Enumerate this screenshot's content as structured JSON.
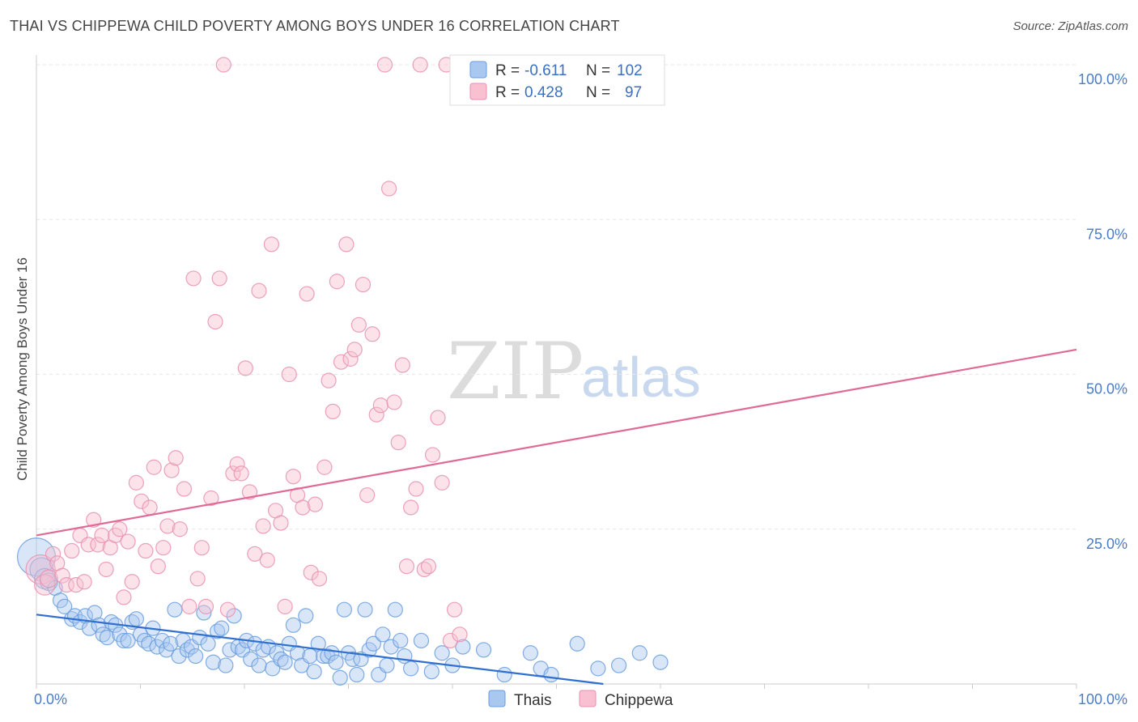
{
  "header": {
    "title": "THAI VS CHIPPEWA CHILD POVERTY AMONG BOYS UNDER 16 CORRELATION CHART",
    "source": "Source: ZipAtlas.com"
  },
  "watermark": {
    "zip": "ZIP",
    "atlas": "atlas"
  },
  "legend": {
    "r_label": "R =",
    "n_label": "N =",
    "rows": [
      {
        "r": "-0.611",
        "n": "102",
        "color": "#a8c8f0",
        "stroke": "#6a9ede"
      },
      {
        "r": "0.428",
        "n": "97",
        "color": "#f8c0d0",
        "stroke": "#e890b0"
      }
    ]
  },
  "bottom_legend": [
    {
      "label": "Thais",
      "color": "#a8c8f0",
      "stroke": "#6a9ede"
    },
    {
      "label": "Chippewa",
      "color": "#f8c0d0",
      "stroke": "#e890b0"
    }
  ],
  "chart_data": {
    "type": "scatter",
    "title": "THAI VS CHIPPEWA CHILD POVERTY AMONG BOYS UNDER 16 CORRELATION CHART",
    "xlabel": "",
    "ylabel": "Child Poverty Among Boys Under 16",
    "xlim": [
      0,
      100
    ],
    "ylim": [
      0,
      100
    ],
    "x_tick_labels": [
      "0.0%",
      "100.0%"
    ],
    "y_tick_labels": [
      "25.0%",
      "50.0%",
      "75.0%",
      "100.0%"
    ],
    "y_ticks": [
      25,
      50,
      75,
      100
    ],
    "grid": true,
    "legend_position": "top-center",
    "series": [
      {
        "name": "Thais",
        "color": "#6a9ede",
        "fill": "#a8c8f0",
        "trend": {
          "x": [
            0,
            54.5
          ],
          "y": [
            11.2,
            0
          ]
        },
        "points": [
          [
            0,
            20.5,
            2.6
          ],
          [
            0.5,
            18.5,
            1.6
          ],
          [
            0.8,
            17.0,
            1.4
          ],
          [
            1.2,
            16.5,
            1.2
          ],
          [
            1.8,
            15.5,
            1.0
          ],
          [
            2.3,
            13.5,
            1
          ],
          [
            2.7,
            12.5,
            1
          ],
          [
            3.4,
            10.5,
            1
          ],
          [
            3.7,
            11.0,
            1
          ],
          [
            4.2,
            10.0,
            1
          ],
          [
            4.7,
            11.0,
            1
          ],
          [
            5.1,
            9.0,
            1
          ],
          [
            5.6,
            11.5,
            1
          ],
          [
            6.0,
            9.5,
            1
          ],
          [
            6.4,
            8.0,
            1
          ],
          [
            6.8,
            7.5,
            1
          ],
          [
            7.2,
            10.0,
            1
          ],
          [
            7.6,
            9.5,
            1
          ],
          [
            8.0,
            8.0,
            1
          ],
          [
            8.4,
            7.0,
            1
          ],
          [
            8.8,
            7.0,
            1
          ],
          [
            9.2,
            10.0,
            1
          ],
          [
            9.6,
            10.5,
            1
          ],
          [
            10.0,
            8.0,
            1
          ],
          [
            10.4,
            7.0,
            1
          ],
          [
            10.8,
            6.5,
            1
          ],
          [
            11.2,
            9.0,
            1
          ],
          [
            11.6,
            6.0,
            1
          ],
          [
            12.1,
            7.0,
            1
          ],
          [
            12.5,
            5.5,
            1
          ],
          [
            12.9,
            6.5,
            1
          ],
          [
            13.3,
            12.0,
            1
          ],
          [
            13.7,
            4.5,
            1
          ],
          [
            14.1,
            7.0,
            1
          ],
          [
            14.5,
            5.5,
            1
          ],
          [
            14.9,
            6.0,
            1
          ],
          [
            15.3,
            4.5,
            1
          ],
          [
            15.7,
            7.5,
            1
          ],
          [
            16.1,
            11.5,
            1
          ],
          [
            16.5,
            6.5,
            1
          ],
          [
            17.0,
            3.5,
            1
          ],
          [
            17.4,
            8.5,
            1
          ],
          [
            17.8,
            9.0,
            1
          ],
          [
            18.2,
            3.0,
            1
          ],
          [
            18.6,
            5.5,
            1
          ],
          [
            19.0,
            11.0,
            1
          ],
          [
            19.4,
            6.0,
            1
          ],
          [
            19.8,
            5.5,
            1
          ],
          [
            20.2,
            7.0,
            1
          ],
          [
            20.6,
            4.0,
            1
          ],
          [
            21.0,
            6.5,
            1
          ],
          [
            21.4,
            3.0,
            1
          ],
          [
            21.8,
            5.5,
            1
          ],
          [
            22.3,
            6.0,
            1
          ],
          [
            22.7,
            2.5,
            1
          ],
          [
            23.1,
            5.0,
            1
          ],
          [
            23.5,
            4.0,
            1
          ],
          [
            23.9,
            3.5,
            1
          ],
          [
            24.3,
            6.5,
            1
          ],
          [
            24.7,
            9.5,
            1
          ],
          [
            25.1,
            5.0,
            1
          ],
          [
            25.5,
            3.0,
            1
          ],
          [
            25.9,
            11.0,
            1
          ],
          [
            26.3,
            4.5,
            1
          ],
          [
            26.7,
            2.0,
            1
          ],
          [
            27.1,
            6.5,
            1
          ],
          [
            27.6,
            4.5,
            1
          ],
          [
            28.0,
            4.5,
            1
          ],
          [
            28.4,
            5.0,
            1
          ],
          [
            28.8,
            3.5,
            1
          ],
          [
            29.2,
            1.0,
            1
          ],
          [
            29.6,
            12.0,
            1
          ],
          [
            30.0,
            5.0,
            1
          ],
          [
            30.4,
            4.0,
            1
          ],
          [
            30.8,
            1.5,
            1
          ],
          [
            31.2,
            4.0,
            1
          ],
          [
            31.6,
            12.0,
            1
          ],
          [
            32.0,
            5.5,
            1
          ],
          [
            32.4,
            6.5,
            1
          ],
          [
            32.9,
            1.5,
            1
          ],
          [
            33.3,
            8.0,
            1
          ],
          [
            33.7,
            3.0,
            1
          ],
          [
            34.1,
            6.0,
            1
          ],
          [
            34.5,
            12.0,
            1
          ],
          [
            35.0,
            7.0,
            1
          ],
          [
            35.4,
            4.5,
            1
          ],
          [
            36.0,
            2.5,
            1
          ],
          [
            37.0,
            7.0,
            1
          ],
          [
            38.0,
            2.0,
            1
          ],
          [
            39.0,
            5.0,
            1
          ],
          [
            40.0,
            3.0,
            1
          ],
          [
            41.0,
            6.0,
            1
          ],
          [
            43.0,
            5.5,
            1
          ],
          [
            45.0,
            1.5,
            1
          ],
          [
            47.5,
            5.0,
            1
          ],
          [
            48.5,
            2.5,
            1
          ],
          [
            49.5,
            1.5,
            1
          ],
          [
            52.0,
            6.5,
            1
          ],
          [
            54.0,
            2.5,
            1
          ],
          [
            56.0,
            3.0,
            1
          ],
          [
            58.0,
            5.0,
            1
          ],
          [
            60.0,
            3.5,
            1
          ]
        ]
      },
      {
        "name": "Chippewa",
        "color": "#e890b0",
        "fill": "#f8c0d0",
        "trend": {
          "x": [
            0,
            100
          ],
          "y": [
            24.0,
            54.0
          ]
        },
        "points": [
          [
            0.4,
            18.5,
            2.0
          ],
          [
            0.8,
            16.0,
            1.4
          ],
          [
            1.2,
            17.0,
            1.2
          ],
          [
            1.6,
            21.0,
            1
          ],
          [
            2.0,
            19.5,
            1
          ],
          [
            2.5,
            17.5,
            1
          ],
          [
            2.9,
            16.0,
            1
          ],
          [
            3.4,
            21.5,
            1
          ],
          [
            3.8,
            16.0,
            1
          ],
          [
            4.2,
            24.0,
            1
          ],
          [
            4.6,
            16.5,
            1
          ],
          [
            5.0,
            22.5,
            1
          ],
          [
            5.5,
            26.5,
            1
          ],
          [
            5.9,
            22.5,
            1
          ],
          [
            6.3,
            24.0,
            1
          ],
          [
            6.7,
            18.5,
            1
          ],
          [
            7.1,
            22.0,
            1
          ],
          [
            7.6,
            24.0,
            1
          ],
          [
            8.0,
            25.0,
            1
          ],
          [
            8.4,
            14.0,
            1
          ],
          [
            8.8,
            23.0,
            1
          ],
          [
            9.2,
            16.5,
            1
          ],
          [
            9.6,
            32.5,
            1
          ],
          [
            10.1,
            29.5,
            1
          ],
          [
            10.5,
            21.5,
            1
          ],
          [
            10.9,
            28.5,
            1
          ],
          [
            11.3,
            35.0,
            1
          ],
          [
            11.7,
            19.0,
            1
          ],
          [
            12.2,
            22.0,
            1
          ],
          [
            12.6,
            25.5,
            1
          ],
          [
            13.0,
            34.5,
            1
          ],
          [
            13.4,
            36.5,
            1
          ],
          [
            13.8,
            25.0,
            1
          ],
          [
            14.2,
            31.5,
            1
          ],
          [
            14.7,
            12.5,
            1
          ],
          [
            15.1,
            65.5,
            1
          ],
          [
            15.5,
            17.0,
            1
          ],
          [
            15.9,
            22.0,
            1
          ],
          [
            16.3,
            12.5,
            1
          ],
          [
            16.8,
            30.0,
            1
          ],
          [
            17.2,
            58.5,
            1
          ],
          [
            17.6,
            65.5,
            1
          ],
          [
            18.0,
            100.0,
            1
          ],
          [
            18.4,
            12.0,
            1
          ],
          [
            18.9,
            34.0,
            1
          ],
          [
            19.3,
            35.5,
            1
          ],
          [
            19.7,
            34.0,
            1
          ],
          [
            20.1,
            51.0,
            1
          ],
          [
            20.5,
            31.0,
            1
          ],
          [
            21.0,
            21.0,
            1
          ],
          [
            21.4,
            63.5,
            1
          ],
          [
            21.8,
            25.5,
            1
          ],
          [
            22.2,
            20.0,
            1
          ],
          [
            22.6,
            71.0,
            1
          ],
          [
            23.0,
            28.0,
            1
          ],
          [
            23.5,
            26.0,
            1
          ],
          [
            23.9,
            12.5,
            1
          ],
          [
            24.3,
            50.0,
            1
          ],
          [
            24.7,
            33.5,
            1
          ],
          [
            25.1,
            30.5,
            1
          ],
          [
            25.6,
            28.5,
            1
          ],
          [
            26.0,
            63.0,
            1
          ],
          [
            26.4,
            18.0,
            1
          ],
          [
            26.8,
            29.0,
            1
          ],
          [
            27.2,
            17.0,
            1
          ],
          [
            27.7,
            35.0,
            1
          ],
          [
            28.1,
            49.0,
            1
          ],
          [
            28.5,
            44.0,
            1
          ],
          [
            28.9,
            65.0,
            1
          ],
          [
            29.3,
            52.0,
            1
          ],
          [
            29.8,
            71.0,
            1
          ],
          [
            30.2,
            52.5,
            1
          ],
          [
            30.6,
            54.0,
            1
          ],
          [
            31.0,
            58.0,
            1
          ],
          [
            31.4,
            64.5,
            1
          ],
          [
            31.8,
            30.5,
            1
          ],
          [
            32.3,
            56.5,
            1
          ],
          [
            32.7,
            43.5,
            1
          ],
          [
            33.1,
            45.0,
            1
          ],
          [
            33.5,
            100.0,
            1
          ],
          [
            33.9,
            80.0,
            1
          ],
          [
            34.4,
            45.5,
            1
          ],
          [
            34.8,
            39.0,
            1
          ],
          [
            35.2,
            51.5,
            1
          ],
          [
            35.6,
            19.0,
            1
          ],
          [
            36.0,
            28.5,
            1
          ],
          [
            36.5,
            31.5,
            1
          ],
          [
            36.9,
            100.0,
            1
          ],
          [
            37.3,
            18.5,
            1
          ],
          [
            37.7,
            19.0,
            1
          ],
          [
            38.1,
            37.0,
            1
          ],
          [
            38.6,
            43.0,
            1
          ],
          [
            39.0,
            32.5,
            1
          ],
          [
            39.4,
            100.0,
            1
          ],
          [
            39.8,
            7.0,
            1
          ],
          [
            40.2,
            12.0,
            1
          ],
          [
            40.7,
            8.0,
            1
          ]
        ]
      }
    ]
  }
}
